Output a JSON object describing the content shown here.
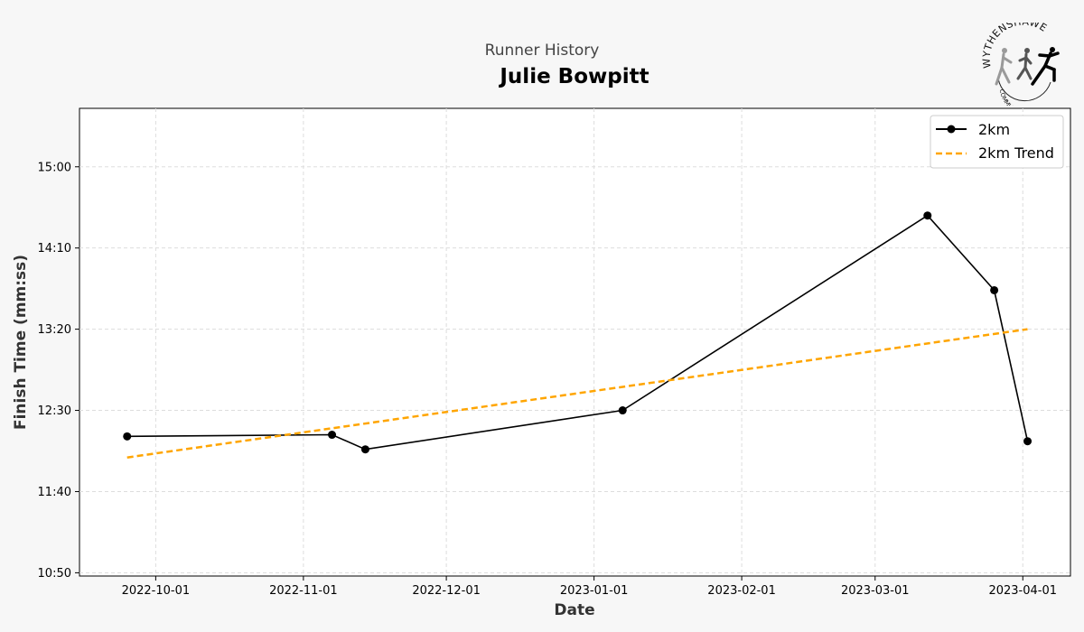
{
  "header": {
    "subtitle": "Runner History",
    "runner_name": "Julie Bowpitt"
  },
  "logo": {
    "top_text": "WYTHENSHAWE",
    "bottom_text": "COMMUNITY RUN"
  },
  "chart_data": {
    "type": "line",
    "xlabel": "Date",
    "ylabel": "Finish Time (mm:ss)",
    "x_ticks": [
      "2022-10-01",
      "2022-11-01",
      "2022-12-01",
      "2023-01-01",
      "2023-02-01",
      "2023-03-01",
      "2023-04-01"
    ],
    "y_ticks": [
      "10:50",
      "11:40",
      "12:30",
      "13:20",
      "14:10",
      "15:00"
    ],
    "xlim": [
      "2022-09-15",
      "2023-04-11"
    ],
    "ylim": [
      "10:48",
      "15:36"
    ],
    "grid": true,
    "legend_position": "top-right",
    "series": [
      {
        "name": "2km",
        "color": "#000000",
        "marker": "circle",
        "line_style": "solid",
        "points": [
          {
            "x": "2022-09-25",
            "y": "12:14"
          },
          {
            "x": "2022-11-07",
            "y": "12:15"
          },
          {
            "x": "2022-11-14",
            "y": "12:06"
          },
          {
            "x": "2023-01-07",
            "y": "12:30"
          },
          {
            "x": "2023-03-12",
            "y": "14:30"
          },
          {
            "x": "2023-03-26",
            "y": "13:44"
          },
          {
            "x": "2023-04-02",
            "y": "12:11"
          }
        ]
      },
      {
        "name": "2km Trend",
        "color": "#FFA500",
        "marker": "none",
        "line_style": "dashed",
        "points": [
          {
            "x": "2022-09-25",
            "y": "12:01"
          },
          {
            "x": "2023-04-02",
            "y": "13:20"
          }
        ]
      }
    ]
  }
}
